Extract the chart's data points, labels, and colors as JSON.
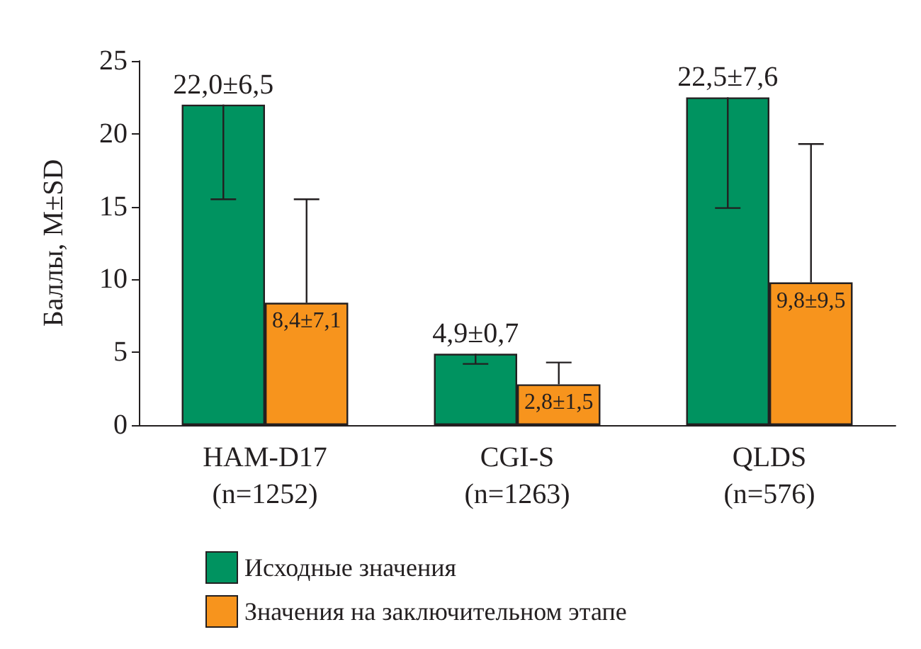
{
  "chart_data": {
    "type": "bar",
    "ylabel": "Баллы, M±SD",
    "categories": [
      "HAM-D17\n(n=1252)",
      "CGI-S\n(n=1263)",
      "QLDS\n(n=576)"
    ],
    "series": [
      {
        "name": "Исходные значения",
        "color": "#009360",
        "values": [
          22.0,
          4.9,
          22.5
        ],
        "errors": [
          [
            15.5,
            22.0
          ],
          [
            4.2,
            4.9
          ],
          [
            14.9,
            22.5
          ]
        ],
        "value_labels": [
          "22,0±6,5",
          "4,9±0,7",
          "22,5±7,6"
        ]
      },
      {
        "name": "Значения на заключительном этапе",
        "color": "#f7941d",
        "values": [
          8.4,
          2.8,
          9.8
        ],
        "errors": [
          [
            8.4,
            15.5
          ],
          [
            2.8,
            4.3
          ],
          [
            9.8,
            19.3
          ]
        ],
        "value_labels": [
          "8,4±7,1",
          "2,8±1,5",
          "9,8±9,5"
        ]
      }
    ],
    "ylim": [
      0,
      25
    ],
    "yticks": [
      0,
      5,
      10,
      15,
      20,
      25
    ],
    "grid": false,
    "legend": "bottom left"
  }
}
